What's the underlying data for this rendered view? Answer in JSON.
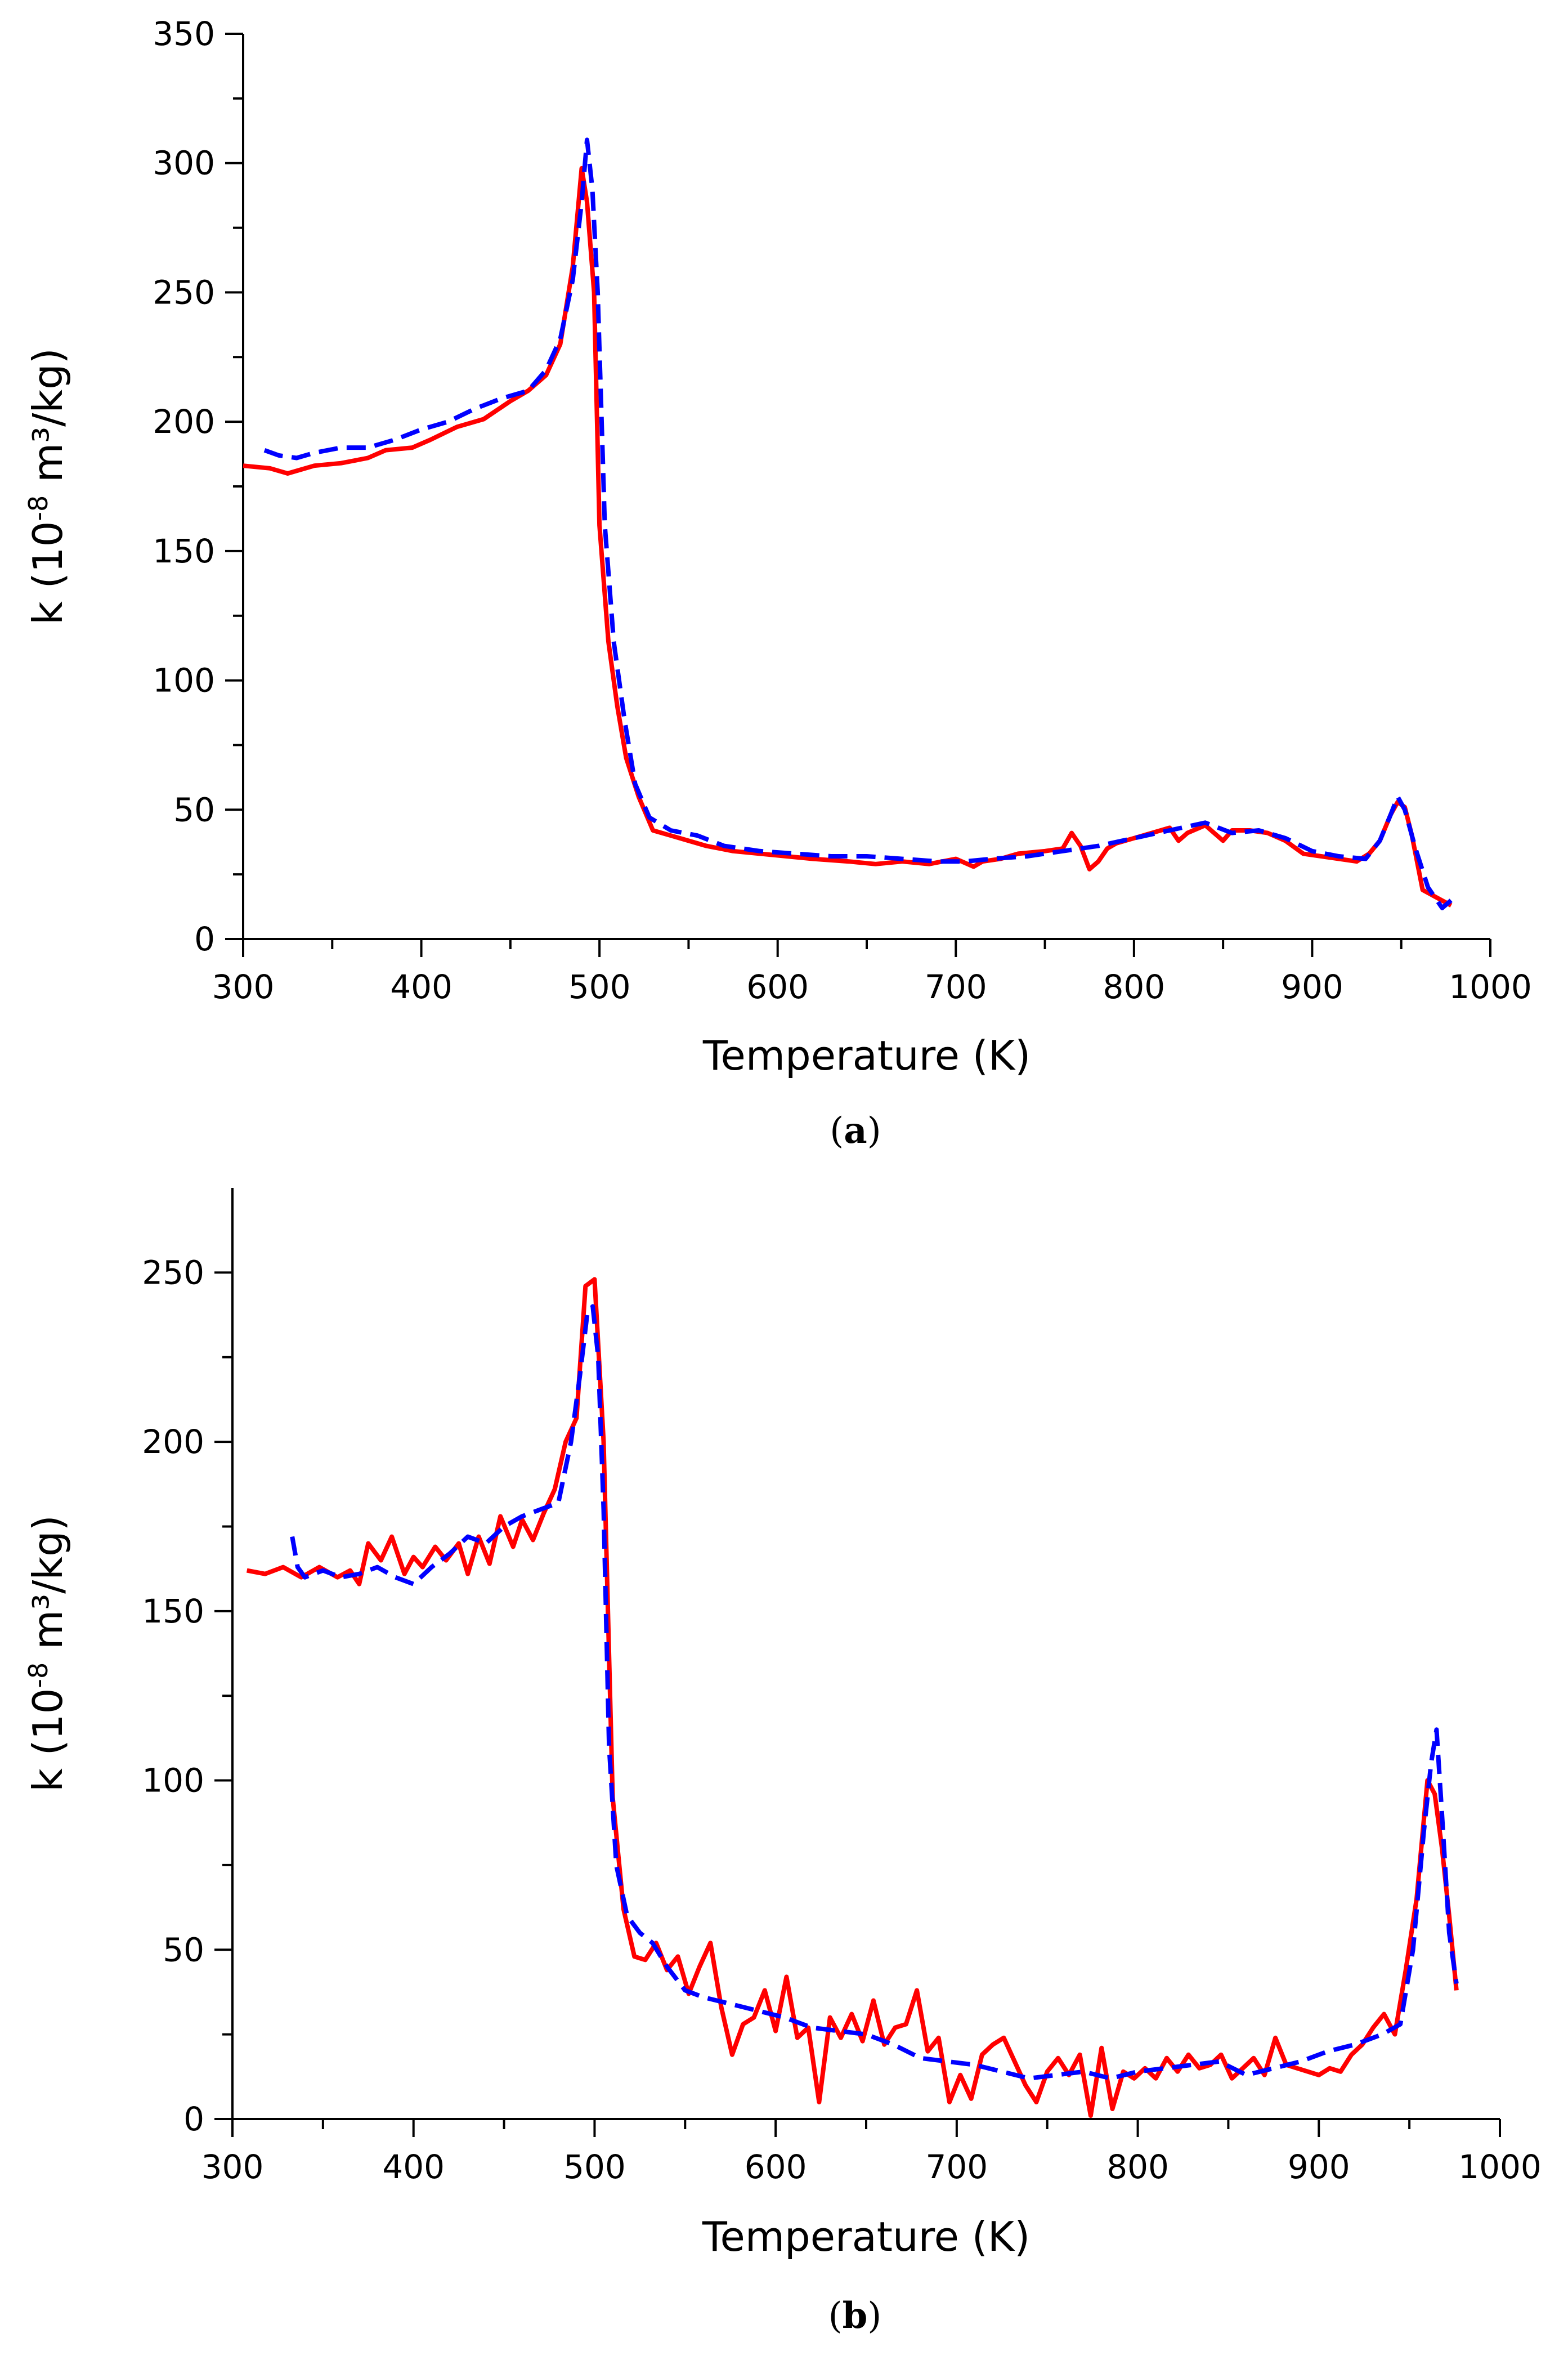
{
  "chart_data": [
    {
      "panel": "(a)",
      "type": "line",
      "xlabel": "Temperature (K)",
      "ylabel": "k (10-8 m³/kg)",
      "ylabel_parts": {
        "pre": "k (10",
        "sup": "-8",
        "post": " m³/kg)"
      },
      "xlim": [
        300,
        1000
      ],
      "ylim": [
        0,
        350
      ],
      "xticks": [
        300,
        400,
        500,
        600,
        700,
        800,
        900,
        1000
      ],
      "yticks": [
        0,
        50,
        100,
        150,
        200,
        250,
        300,
        350
      ],
      "xtick_labels": [
        "300",
        "400",
        "500",
        "600",
        "700",
        "800",
        "900",
        "1000"
      ],
      "ytick_labels": [
        "0",
        "50",
        "100",
        "150",
        "200",
        "250",
        "300",
        "350"
      ],
      "series": [
        {
          "name": "solid red",
          "color": "#ff0000",
          "style": "solid",
          "x": [
            300,
            315,
            325,
            340,
            355,
            370,
            380,
            395,
            405,
            420,
            435,
            450,
            460,
            470,
            478,
            485,
            490,
            493,
            497,
            500,
            505,
            510,
            515,
            522,
            530,
            540,
            550,
            560,
            575,
            590,
            605,
            620,
            640,
            655,
            670,
            685,
            700,
            710,
            715,
            725,
            735,
            750,
            760,
            765,
            770,
            775,
            780,
            785,
            790,
            800,
            810,
            820,
            825,
            830,
            840,
            850,
            855,
            865,
            875,
            885,
            895,
            905,
            915,
            925,
            932,
            938,
            944,
            948,
            952,
            956,
            962,
            970,
            978
          ],
          "y": [
            183,
            182,
            180,
            183,
            184,
            186,
            189,
            190,
            193,
            198,
            201,
            208,
            212,
            218,
            230,
            260,
            298,
            285,
            250,
            160,
            115,
            90,
            70,
            55,
            42,
            40,
            38,
            36,
            34,
            33,
            32,
            31,
            30,
            29,
            30,
            29,
            31,
            28,
            30,
            31,
            33,
            34,
            35,
            41,
            36,
            27,
            30,
            35,
            37,
            39,
            41,
            43,
            38,
            41,
            44,
            38,
            42,
            42,
            41,
            38,
            33,
            32,
            31,
            30,
            33,
            38,
            48,
            53,
            51,
            40,
            19,
            16,
            13
          ]
        },
        {
          "name": "dashed blue",
          "color": "#0000ff",
          "style": "dashed",
          "x": [
            312,
            320,
            330,
            340,
            355,
            370,
            385,
            400,
            415,
            430,
            445,
            460,
            470,
            478,
            485,
            490,
            493,
            496,
            499,
            503,
            508,
            514,
            520,
            528,
            540,
            555,
            570,
            590,
            610,
            630,
            650,
            670,
            690,
            705,
            720,
            740,
            760,
            780,
            800,
            820,
            840,
            855,
            870,
            885,
            900,
            915,
            930,
            938,
            944,
            948,
            952,
            958,
            965,
            973,
            978
          ],
          "y": [
            189,
            187,
            186,
            188,
            190,
            190,
            193,
            197,
            200,
            205,
            209,
            212,
            220,
            232,
            255,
            285,
            309,
            290,
            250,
            160,
            115,
            85,
            60,
            47,
            42,
            40,
            36,
            34,
            33,
            32,
            32,
            31,
            30,
            30,
            31,
            32,
            34,
            36,
            39,
            42,
            45,
            41,
            42,
            39,
            34,
            32,
            31,
            38,
            48,
            55,
            50,
            35,
            20,
            12,
            15
          ]
        }
      ]
    },
    {
      "panel": "(b)",
      "type": "line",
      "xlabel": "Temperature (K)",
      "ylabel": "k (10-8 m³/kg)",
      "ylabel_parts": {
        "pre": "k (10",
        "sup": "-8",
        "post": " m³/kg)"
      },
      "xlim": [
        300,
        1000
      ],
      "ylim": [
        0,
        275
      ],
      "xticks": [
        300,
        400,
        500,
        600,
        700,
        800,
        900,
        1000
      ],
      "yticks": [
        0,
        50,
        100,
        150,
        200,
        250
      ],
      "xtick_labels": [
        "300",
        "400",
        "500",
        "600",
        "700",
        "800",
        "900",
        "1000"
      ],
      "ytick_labels": [
        "0",
        "50",
        "100",
        "150",
        "200",
        "250"
      ],
      "series": [
        {
          "name": "solid red",
          "color": "#ff0000",
          "style": "solid",
          "x": [
            308,
            318,
            328,
            338,
            348,
            358,
            365,
            370,
            375,
            382,
            388,
            395,
            400,
            405,
            412,
            418,
            425,
            430,
            436,
            442,
            448,
            455,
            460,
            466,
            472,
            478,
            484,
            490,
            495,
            500,
            505,
            510,
            516,
            522,
            528,
            534,
            540,
            546,
            552,
            558,
            564,
            570,
            576,
            582,
            588,
            594,
            600,
            606,
            612,
            618,
            624,
            630,
            636,
            642,
            648,
            654,
            660,
            666,
            672,
            678,
            684,
            690,
            696,
            702,
            708,
            714,
            720,
            726,
            732,
            738,
            744,
            750,
            756,
            762,
            768,
            774,
            780,
            786,
            792,
            798,
            804,
            810,
            816,
            822,
            828,
            834,
            840,
            846,
            852,
            858,
            864,
            870,
            876,
            882,
            888,
            894,
            900,
            906,
            912,
            918,
            924,
            930,
            936,
            942,
            948,
            954,
            960,
            964,
            968,
            972,
            976
          ],
          "y": [
            162,
            161,
            163,
            160,
            163,
            160,
            162,
            158,
            170,
            165,
            172,
            161,
            166,
            163,
            169,
            165,
            170,
            161,
            172,
            164,
            178,
            169,
            177,
            171,
            179,
            186,
            200,
            207,
            246,
            248,
            200,
            95,
            62,
            48,
            47,
            52,
            44,
            48,
            37,
            45,
            52,
            33,
            19,
            28,
            30,
            38,
            26,
            42,
            24,
            27,
            5,
            30,
            24,
            31,
            23,
            35,
            22,
            27,
            28,
            38,
            20,
            24,
            5,
            13,
            6,
            19,
            22,
            24,
            17,
            10,
            5,
            14,
            18,
            13,
            19,
            1,
            21,
            3,
            14,
            12,
            15,
            12,
            18,
            14,
            19,
            15,
            16,
            19,
            12,
            15,
            18,
            13,
            24,
            16,
            15,
            14,
            13,
            15,
            14,
            19,
            22,
            27,
            31,
            25,
            44,
            65,
            100,
            96,
            80,
            60,
            38
          ]
        },
        {
          "name": "dashed blue",
          "color": "#0000ff",
          "style": "dashed",
          "x": [
            333,
            336,
            340,
            350,
            360,
            370,
            380,
            390,
            400,
            410,
            420,
            430,
            440,
            450,
            460,
            470,
            480,
            487,
            492,
            496,
            499,
            502,
            505,
            508,
            512,
            518,
            525,
            532,
            540,
            550,
            560,
            575,
            590,
            605,
            620,
            635,
            650,
            665,
            680,
            695,
            710,
            725,
            740,
            755,
            770,
            785,
            800,
            815,
            830,
            845,
            860,
            875,
            890,
            905,
            920,
            935,
            945,
            952,
            958,
            962,
            965,
            968,
            972,
            976
          ],
          "y": [
            172,
            163,
            160,
            162,
            160,
            161,
            163,
            160,
            158,
            163,
            167,
            172,
            170,
            175,
            178,
            180,
            182,
            200,
            220,
            238,
            240,
            225,
            180,
            110,
            75,
            60,
            55,
            52,
            45,
            38,
            36,
            34,
            32,
            30,
            27,
            26,
            25,
            22,
            18,
            17,
            16,
            14,
            12,
            13,
            14,
            12,
            14,
            15,
            16,
            17,
            13,
            15,
            17,
            20,
            22,
            25,
            28,
            50,
            85,
            105,
            115,
            90,
            55,
            40
          ]
        }
      ]
    }
  ]
}
